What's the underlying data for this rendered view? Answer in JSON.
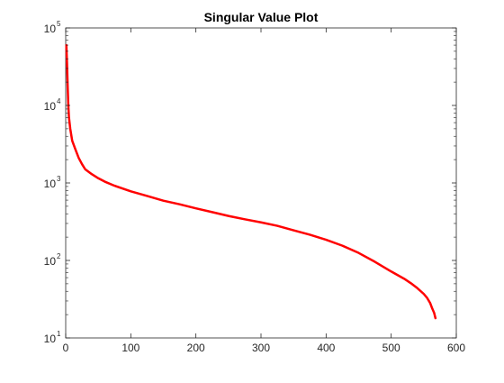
{
  "chart_data": {
    "type": "line",
    "title": "Singular Value Plot",
    "xlabel": "",
    "ylabel": "",
    "xlim": [
      0,
      600
    ],
    "ylim": [
      10,
      100000
    ],
    "yscale": "log",
    "grid": false,
    "legend": "none",
    "x_ticks": [
      {
        "value": 0,
        "label": "0"
      },
      {
        "value": 100,
        "label": "100"
      },
      {
        "value": 200,
        "label": "200"
      },
      {
        "value": 300,
        "label": "300"
      },
      {
        "value": 400,
        "label": "400"
      },
      {
        "value": 500,
        "label": "500"
      },
      {
        "value": 600,
        "label": "600"
      }
    ],
    "y_ticks": [
      {
        "value": 10,
        "base": "10",
        "exp": "1"
      },
      {
        "value": 100,
        "base": "10",
        "exp": "2"
      },
      {
        "value": 1000,
        "base": "10",
        "exp": "3"
      },
      {
        "value": 10000,
        "base": "10",
        "exp": "4"
      },
      {
        "value": 100000,
        "base": "10",
        "exp": "5"
      }
    ],
    "series": [
      {
        "color": "#ff0000",
        "x": [
          1,
          2,
          3,
          4,
          5,
          7,
          10,
          15,
          20,
          25,
          30,
          40,
          50,
          60,
          75,
          100,
          125,
          150,
          175,
          200,
          225,
          250,
          275,
          300,
          325,
          350,
          375,
          400,
          425,
          450,
          475,
          500,
          520,
          530,
          540,
          550,
          555,
          560,
          563,
          566,
          568
        ],
        "y": [
          60000,
          35000,
          18000,
          10000,
          7000,
          5000,
          3500,
          2700,
          2100,
          1750,
          1500,
          1300,
          1150,
          1040,
          920,
          780,
          680,
          590,
          530,
          470,
          420,
          375,
          340,
          310,
          280,
          245,
          215,
          185,
          155,
          125,
          96,
          72,
          58,
          51,
          44,
          37,
          33,
          28,
          24,
          21,
          18
        ]
      }
    ]
  }
}
